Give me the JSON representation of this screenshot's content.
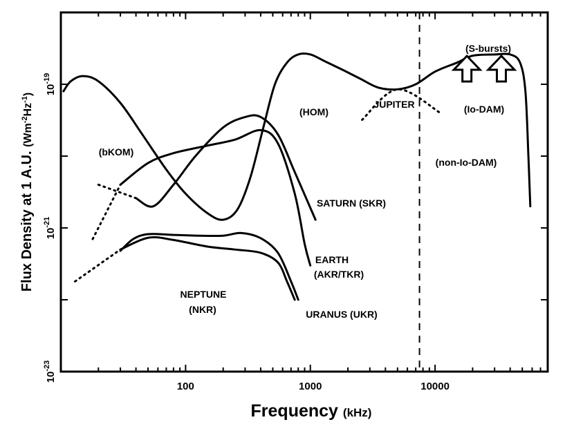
{
  "chart_data": {
    "type": "line",
    "xscale": "log",
    "yscale": "log",
    "xlim": [
      10,
      80000
    ],
    "ylim": [
      1e-23,
      1e-18
    ],
    "xlabel": "Frequency",
    "xlabel_unit": "(kHz)",
    "ylabel": "Flux Density at 1 A.U.",
    "ylabel_unit": "(Wm-2Hz-1)",
    "x_ticks": [
      {
        "value": 100,
        "label": "100"
      },
      {
        "value": 1000,
        "label": "1000"
      },
      {
        "value": 10000,
        "label": "10000"
      }
    ],
    "y_ticks": [
      {
        "value": 1e-19,
        "label": "10",
        "exp": "-19"
      },
      {
        "value": 1e-21,
        "label": "10",
        "exp": "-21"
      },
      {
        "value": 1e-23,
        "label": "10",
        "exp": "-23"
      }
    ],
    "reference_line": {
      "x": 7500,
      "style": "dashed"
    },
    "series": [
      {
        "name": "Jupiter",
        "style": "solid",
        "points": [
          [
            10.5,
            8e-20
          ],
          [
            12,
            1.1e-19
          ],
          [
            15,
            1.3e-19
          ],
          [
            20,
            1.1e-19
          ],
          [
            30,
            5.5e-20
          ],
          [
            45,
            2e-20
          ],
          [
            70,
            6.5e-21
          ],
          [
            100,
            3e-21
          ],
          [
            150,
            1.6e-21
          ],
          [
            200,
            1.3e-21
          ],
          [
            260,
            1.8e-21
          ],
          [
            330,
            5e-21
          ],
          [
            420,
            2.5e-20
          ],
          [
            520,
            1e-19
          ],
          [
            650,
            2e-19
          ],
          [
            800,
            2.6e-19
          ],
          [
            1000,
            2.6e-19
          ],
          [
            1300,
            2.1e-19
          ],
          [
            1800,
            1.6e-19
          ],
          [
            2500,
            1.2e-19
          ],
          [
            3500,
            9e-20
          ],
          [
            5000,
            8.5e-20
          ],
          [
            7000,
            1e-19
          ],
          [
            10000,
            1.5e-19
          ],
          [
            15000,
            2e-19
          ],
          [
            20000,
            2.5e-19
          ],
          [
            30000,
            2.6e-19
          ],
          [
            40000,
            2.6e-19
          ],
          [
            48000,
            2e-19
          ],
          [
            53000,
            8e-20
          ],
          [
            56000,
            1e-20
          ],
          [
            58000,
            2e-21
          ]
        ]
      },
      {
        "name": "non-Io-DAM",
        "style": "dotted",
        "points": [
          [
            2600,
            3.2e-20
          ],
          [
            5000,
            8.5e-20
          ],
          [
            11000,
            4e-20
          ]
        ]
      },
      {
        "name": "Saturn",
        "style": "solid",
        "points": [
          [
            40,
            2.6e-21
          ],
          [
            55,
            2e-21
          ],
          [
            80,
            4e-21
          ],
          [
            120,
            1e-20
          ],
          [
            200,
            2.5e-20
          ],
          [
            300,
            3.5e-20
          ],
          [
            400,
            3.5e-20
          ],
          [
            550,
            2e-20
          ],
          [
            750,
            6e-21
          ],
          [
            1100,
            1.3e-21
          ]
        ]
      },
      {
        "name": "Saturn extrapolation",
        "style": "dotted",
        "points": [
          [
            20,
            4e-21
          ],
          [
            40,
            2.6e-21
          ]
        ]
      },
      {
        "name": "Earth",
        "style": "solid",
        "points": [
          [
            30,
            4e-21
          ],
          [
            50,
            8e-21
          ],
          [
            80,
            1.1e-20
          ],
          [
            150,
            1.4e-20
          ],
          [
            250,
            1.7e-20
          ],
          [
            400,
            2.3e-20
          ],
          [
            550,
            1.5e-20
          ],
          [
            750,
            3e-21
          ],
          [
            900,
            6e-22
          ],
          [
            1000,
            3e-22
          ]
        ]
      },
      {
        "name": "Earth extrapolation",
        "style": "dotted",
        "points": [
          [
            18,
            7e-22
          ],
          [
            30,
            4e-21
          ]
        ]
      },
      {
        "name": "Neptune",
        "style": "solid",
        "points": [
          [
            30,
            4.8e-22
          ],
          [
            38,
            7e-22
          ],
          [
            50,
            8.2e-22
          ],
          [
            80,
            8e-22
          ],
          [
            130,
            7.8e-22
          ],
          [
            200,
            7.8e-22
          ],
          [
            280,
            8.5e-22
          ],
          [
            400,
            7.2e-22
          ],
          [
            550,
            4.5e-22
          ],
          [
            700,
            1.8e-22
          ],
          [
            800,
            1e-22
          ]
        ]
      },
      {
        "name": "Uranus",
        "style": "solid",
        "points": [
          [
            30,
            5e-22
          ],
          [
            50,
            7.3e-22
          ],
          [
            80,
            6.8e-22
          ],
          [
            150,
            5.5e-22
          ],
          [
            250,
            5e-22
          ],
          [
            400,
            4.5e-22
          ],
          [
            550,
            3.3e-22
          ],
          [
            650,
            1.8e-22
          ],
          [
            750,
            1e-22
          ]
        ]
      },
      {
        "name": "Uranus extrapolation",
        "style": "dotted",
        "points": [
          [
            13,
            1.8e-22
          ],
          [
            30,
            5e-22
          ]
        ]
      }
    ],
    "annotations": [
      {
        "text": "(S-bursts)",
        "x": 23000,
        "y": 7.5e-19
      },
      {
        "text": "(Io-DAM)",
        "x": 22000,
        "y": 1.3e-19
      },
      {
        "text": "JUPITER",
        "x": 3200,
        "y": 1.75e-19
      },
      {
        "text": "(HOM)",
        "x": 800,
        "y": 1.3e-19
      },
      {
        "text": "(non-Io-DAM)",
        "x": 17000,
        "y": 1.3e-20
      },
      {
        "text": "(bKOM)",
        "x": 27000,
        "y": 3.7e-20,
        "x_note": "placeholder"
      },
      {
        "text": "SATURN (SKR)",
        "x": 2200,
        "y": 5e-21
      },
      {
        "text": "EARTH",
        "x": 1500,
        "y": 8.5e-22
      },
      {
        "text": "(AKR/TKR)",
        "x": 1800,
        "y": 4.5e-22
      },
      {
        "text": "NEPTUNE",
        "x": 200,
        "y": 2e-22
      },
      {
        "text": "(NKR)",
        "x": 210,
        "y": 1.1e-22
      },
      {
        "text": "URANUS (UKR)",
        "x": 2000,
        "y": 1.2e-22
      }
    ],
    "s_bursts_arrows": [
      18000,
      34000
    ]
  }
}
